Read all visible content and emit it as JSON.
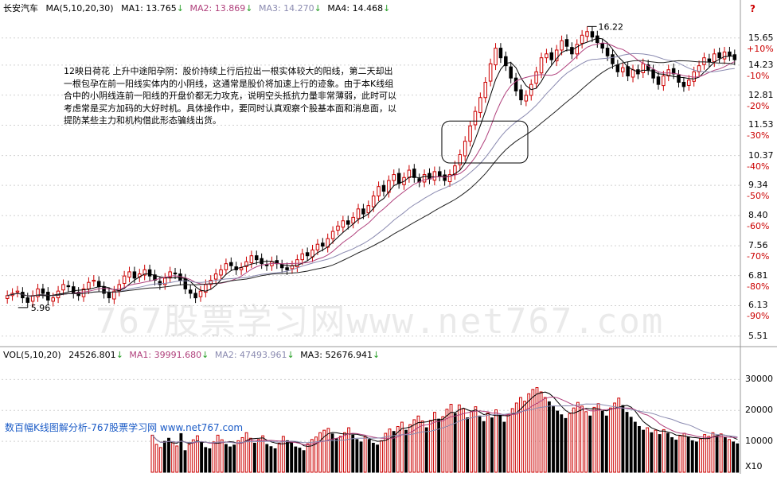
{
  "header": {
    "stock": "长安汽车",
    "ma_label": "MA(5,10,20,30)",
    "ma1": "MA1: 13.765",
    "ma2": "MA2: 13.869",
    "ma3": "MA3: 14.270",
    "ma4": "MA4: 14.468",
    "arrow": "↓"
  },
  "vol_header": {
    "label": "VOL(5,10,20)",
    "vol": "24526.801",
    "ma1": "MA1: 39991.680",
    "ma2": "MA2: 47493.961",
    "ma3": "MA3: 52676.941",
    "arrow": "↓"
  },
  "note": "12映日荷花  上升中途阳孕阴：股价持续上行后拉出一根实体较大的阳线，第二天却出一根包孕在前一阳线实体内的小阴线，这通常是股价将加速上行的迹象。由于本K线组合中的小阴线连前一阳线的开盘价都无力攻克，说明空头抵抗力量非常薄弱，此时可以考虑常是买方加码的大好时机。具体操作中，要同时认真观察个股基本面和消息面，以提防某些主力和机构借此形态骗线出货。",
  "watermark": "767股票学习网www.net767.com",
  "caption": "数百幅K线图解分析-767股票学习网 www.net767.com",
  "colors": {
    "up": "#cc0000",
    "down": "#000000",
    "ma1": "#000000",
    "ma2": "#b0407c",
    "ma3": "#8a8ab0",
    "ma4": "#222222"
  },
  "chart_data": [
    {
      "type": "candlestick",
      "y_scale": "log",
      "ylim": [
        5.4,
        17.0
      ],
      "price_ticks": [
        "15.65",
        "14.23",
        "12.81",
        "11.53",
        "10.37",
        "9.34",
        "8.40",
        "7.56",
        "6.81",
        "6.13",
        "5.51"
      ],
      "pct_ticks": [
        "+10%",
        "-10%",
        "-20%",
        "-30%",
        "-40%",
        "-50%",
        "-60%",
        "-70%",
        "-80%",
        "-90%"
      ],
      "annotations": {
        "high": "16.22",
        "low": "5.96"
      },
      "close": [
        6.35,
        6.4,
        6.45,
        6.3,
        6.2,
        6.35,
        6.5,
        6.4,
        6.25,
        6.3,
        6.45,
        6.6,
        6.55,
        6.4,
        6.35,
        6.5,
        6.65,
        6.7,
        6.55,
        6.4,
        6.3,
        6.45,
        6.6,
        6.8,
        6.9,
        6.75,
        6.85,
        6.95,
        6.8,
        6.7,
        6.6,
        6.75,
        6.9,
        6.85,
        6.7,
        6.5,
        6.4,
        6.3,
        6.45,
        6.6,
        6.7,
        6.85,
        6.95,
        7.1,
        7.05,
        6.95,
        7.0,
        7.15,
        7.3,
        7.2,
        7.1,
        7.05,
        7.15,
        7.1,
        7.0,
        6.95,
        7.05,
        7.2,
        7.35,
        7.3,
        7.45,
        7.6,
        7.55,
        7.75,
        7.95,
        8.1,
        8.25,
        8.15,
        8.35,
        8.6,
        8.45,
        8.7,
        9.0,
        9.3,
        9.15,
        9.5,
        9.7,
        9.4,
        9.6,
        9.85,
        9.6,
        9.45,
        9.7,
        9.55,
        9.8,
        9.65,
        9.5,
        9.7,
        10.0,
        10.4,
        10.9,
        11.5,
        12.1,
        12.7,
        13.4,
        14.3,
        15.1,
        14.6,
        14.2,
        13.6,
        13.0,
        12.6,
        12.8,
        13.3,
        13.9,
        14.6,
        14.8,
        14.5,
        15.0,
        15.5,
        15.2,
        14.8,
        15.3,
        15.8,
        16.0,
        15.7,
        15.4,
        15.1,
        14.7,
        14.3,
        13.9,
        14.1,
        13.7,
        14.0,
        13.8,
        14.3,
        14.0,
        13.6,
        13.3,
        13.7,
        14.0,
        13.8,
        13.4,
        13.2,
        13.5,
        13.9,
        14.2,
        14.6,
        14.4,
        14.8,
        14.6,
        14.9,
        14.7,
        14.5
      ]
    },
    {
      "type": "bar",
      "ylim": [
        0,
        35000
      ],
      "tick_labels": [
        "30000",
        "20000",
        "10000",
        "X10"
      ],
      "values": [
        12000,
        9000,
        8000,
        10000,
        11000,
        9500,
        8500,
        12500,
        7000,
        9000,
        10500,
        11800,
        9600,
        8000,
        7600,
        9800,
        12000,
        10500,
        9000,
        8200,
        8800,
        10200,
        11200,
        12800,
        11000,
        9400,
        10600,
        11800,
        9000,
        8300,
        7600,
        9400,
        11600,
        10200,
        9600,
        8200,
        7800,
        7000,
        9200,
        10600,
        11400,
        12800,
        13600,
        14200,
        12400,
        10800,
        11600,
        12800,
        14400,
        12000,
        10600,
        9800,
        11400,
        10600,
        9400,
        8800,
        10200,
        12600,
        14000,
        13200,
        14800,
        16200,
        13600,
        15400,
        17000,
        18200,
        16600,
        14400,
        16800,
        19400,
        17200,
        18000,
        20400,
        22000,
        19000,
        21800,
        20600,
        17600,
        19800,
        21200,
        18200,
        16400,
        19200,
        17600,
        20200,
        18400,
        16200,
        18800,
        20600,
        22400,
        24200,
        23000,
        25400,
        26800,
        27400,
        26000,
        24200,
        22800,
        21200,
        19800,
        18600,
        17400,
        19000,
        20800,
        22600,
        21400,
        19600,
        18200,
        21000,
        22200,
        19800,
        18200,
        20800,
        22400,
        24000,
        21600,
        19400,
        17800,
        16200,
        14800,
        13600,
        14400,
        12800,
        13600,
        12200,
        13800,
        12600,
        11200,
        10400,
        11800,
        12600,
        11400,
        10200,
        9800,
        10800,
        12200,
        11600,
        12800,
        11800,
        12400,
        11200,
        10600,
        9800,
        9200
      ]
    }
  ]
}
